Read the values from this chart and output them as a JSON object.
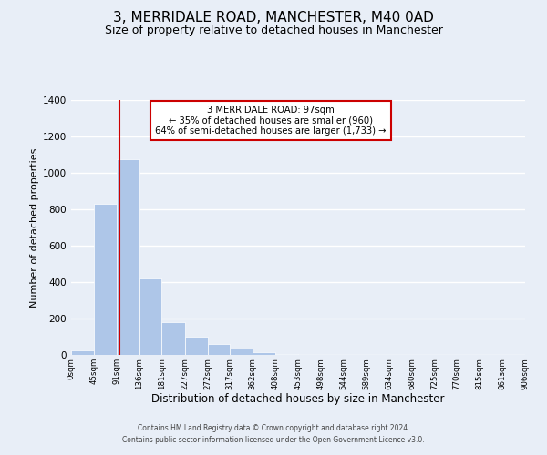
{
  "title": "3, MERRIDALE ROAD, MANCHESTER, M40 0AD",
  "subtitle": "Size of property relative to detached houses in Manchester",
  "xlabel": "Distribution of detached houses by size in Manchester",
  "ylabel": "Number of detached properties",
  "bar_color": "#aec6e8",
  "vline_color": "#cc0000",
  "vline_x": 97,
  "bin_edges": [
    0,
    45,
    91,
    136,
    181,
    227,
    272,
    317,
    362,
    408,
    453,
    498,
    544,
    589,
    634,
    680,
    725,
    770,
    815,
    861,
    906
  ],
  "bar_heights": [
    25,
    830,
    1075,
    420,
    180,
    100,
    58,
    35,
    15,
    5,
    1,
    0,
    0,
    0,
    0,
    0,
    0,
    0,
    0,
    0
  ],
  "ylim": [
    0,
    1400
  ],
  "yticks": [
    0,
    200,
    400,
    600,
    800,
    1000,
    1200,
    1400
  ],
  "xtick_labels": [
    "0sqm",
    "45sqm",
    "91sqm",
    "136sqm",
    "181sqm",
    "227sqm",
    "272sqm",
    "317sqm",
    "362sqm",
    "408sqm",
    "453sqm",
    "498sqm",
    "544sqm",
    "589sqm",
    "634sqm",
    "680sqm",
    "725sqm",
    "770sqm",
    "815sqm",
    "861sqm",
    "906sqm"
  ],
  "annotation_title": "3 MERRIDALE ROAD: 97sqm",
  "annotation_line1": "← 35% of detached houses are smaller (960)",
  "annotation_line2": "64% of semi-detached houses are larger (1,733) →",
  "footer_line1": "Contains HM Land Registry data © Crown copyright and database right 2024.",
  "footer_line2": "Contains public sector information licensed under the Open Government Licence v3.0.",
  "bg_color": "#e8eef7",
  "plot_bg_color": "#e8eef7",
  "grid_color": "#ffffff",
  "title_fontsize": 11,
  "subtitle_fontsize": 9,
  "xlabel_fontsize": 8.5,
  "ylabel_fontsize": 8
}
